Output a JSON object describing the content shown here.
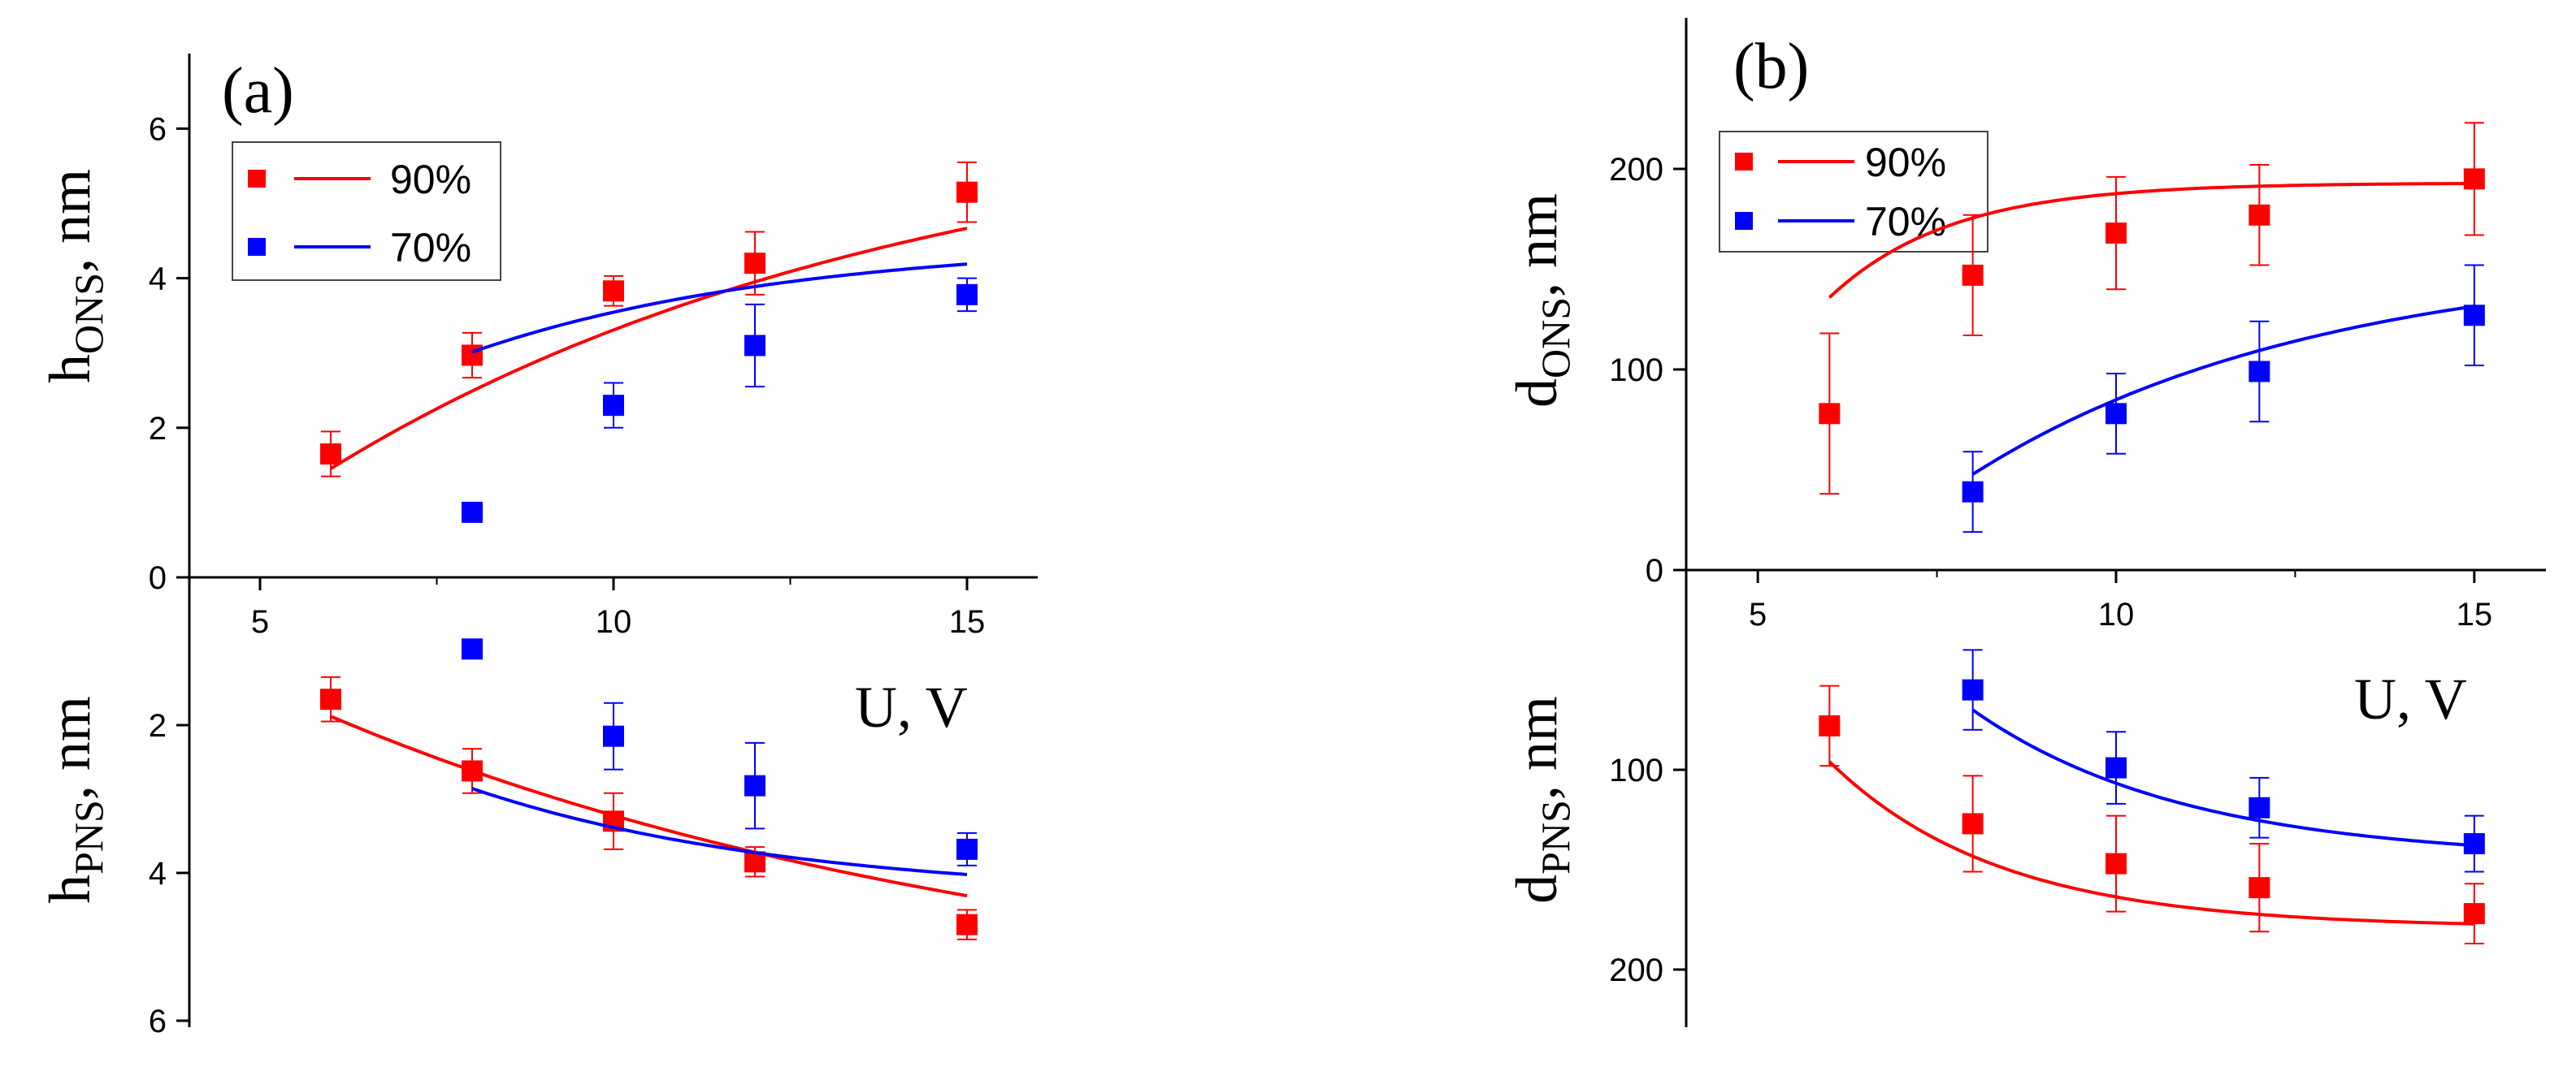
{
  "chart_data": [
    {
      "panel": "(a)",
      "type": "scatter",
      "x_label": "U, V",
      "x_ticks": [
        "5",
        "10",
        "15"
      ],
      "xlim": [
        4,
        16
      ],
      "upper": {
        "ylabel_main": "h",
        "ylabel_sub": "ONS",
        "ylabel_unit": ", nm",
        "ylim": [
          0,
          7
        ],
        "y_ticks": [
          "0",
          "2",
          "4",
          "6"
        ]
      },
      "lower": {
        "ylabel_main": "h",
        "ylabel_sub": "PNS",
        "ylabel_unit": ", nm",
        "ylim": [
          0,
          6
        ],
        "inverted": true,
        "y_ticks": [
          "2",
          "4",
          "6"
        ]
      },
      "series": [
        {
          "name": "90%",
          "color": "#ff0000",
          "upper_x": [
            6,
            8,
            10,
            12,
            15
          ],
          "upper_y": [
            1.65,
            2.97,
            3.83,
            4.2,
            5.15
          ],
          "upper_err": [
            0.3,
            0.3,
            0.2,
            0.42,
            0.4
          ],
          "upper_fit": {
            "model": "exp_saturation",
            "A": 6.32,
            "B": 10.0,
            "c": 0.12
          },
          "lower_x": [
            6,
            8,
            10,
            12,
            15
          ],
          "lower_y": [
            1.65,
            2.62,
            3.3,
            3.85,
            4.7
          ],
          "lower_err": [
            0.3,
            0.3,
            0.38,
            0.2,
            0.2
          ],
          "lower_fit": {
            "model": "exp_saturation",
            "A": 6.05,
            "B": 7.46,
            "c": 0.097
          }
        },
        {
          "name": "70%",
          "color": "#0000ff",
          "upper_x": [
            8,
            10,
            12,
            15
          ],
          "upper_y": [
            0.87,
            2.3,
            3.1,
            3.78
          ],
          "upper_err": [
            0.0,
            0.3,
            0.55,
            0.22
          ],
          "upper_fit": {
            "model": "exp_saturation",
            "A": 4.51,
            "B": 8.71,
            "c": 0.22
          },
          "lower_x": [
            8,
            10,
            12,
            15
          ],
          "lower_y": [
            0.97,
            2.15,
            2.82,
            3.68
          ],
          "lower_err": [
            0.0,
            0.45,
            0.58,
            0.22
          ],
          "lower_fit": {
            "model": "exp_saturation",
            "A": 4.34,
            "B": 8.62,
            "c": 0.22
          }
        }
      ]
    },
    {
      "panel": "(b)",
      "type": "scatter",
      "x_label": "U, V",
      "x_ticks": [
        "5",
        "10",
        "15"
      ],
      "xlim": [
        4,
        16
      ],
      "upper": {
        "ylabel_main": "d",
        "ylabel_sub": "ONS",
        "ylabel_unit": ", nm",
        "ylim": [
          0,
          275
        ],
        "y_ticks": [
          "0",
          "100",
          "200"
        ]
      },
      "lower": {
        "ylabel_main": "d",
        "ylabel_sub": "PNS",
        "ylabel_unit": ", nm",
        "ylim": [
          0,
          225
        ],
        "inverted": true,
        "y_ticks": [
          "100",
          "200"
        ]
      },
      "series": [
        {
          "name": "90%",
          "color": "#ff0000",
          "upper_x": [
            6,
            8,
            10,
            12,
            15
          ],
          "upper_y": [
            78,
            147,
            168,
            177,
            195
          ],
          "upper_err": [
            40,
            30,
            28,
            25,
            28
          ],
          "upper_fit": {
            "model": "exp_saturation",
            "A": 193,
            "B": 2005,
            "c": 0.593
          },
          "lower_x": [
            6,
            8,
            10,
            12,
            15
          ],
          "lower_y": [
            78,
            127,
            147,
            159,
            172
          ],
          "lower_err": [
            20,
            24,
            24,
            22,
            15
          ],
          "lower_fit": {
            "model": "exp_saturation",
            "A": 179,
            "B": 1045,
            "c": 0.422
          }
        },
        {
          "name": "70%",
          "color": "#0000ff",
          "upper_x": [
            8,
            10,
            12,
            15
          ],
          "upper_y": [
            39,
            78,
            99,
            127
          ],
          "upper_err": [
            20,
            20,
            25,
            25
          ],
          "upper_fit": {
            "model": "exp_saturation",
            "A": 157,
            "B": 577,
            "c": 0.208
          },
          "lower_x": [
            8,
            10,
            12,
            15
          ],
          "lower_y": [
            60,
            99,
            119,
            137
          ],
          "lower_err": [
            20,
            18,
            15,
            14
          ],
          "lower_fit": {
            "model": "exp_saturation",
            "A": 145,
            "B": 1102,
            "c": 0.336
          }
        }
      ]
    }
  ]
}
